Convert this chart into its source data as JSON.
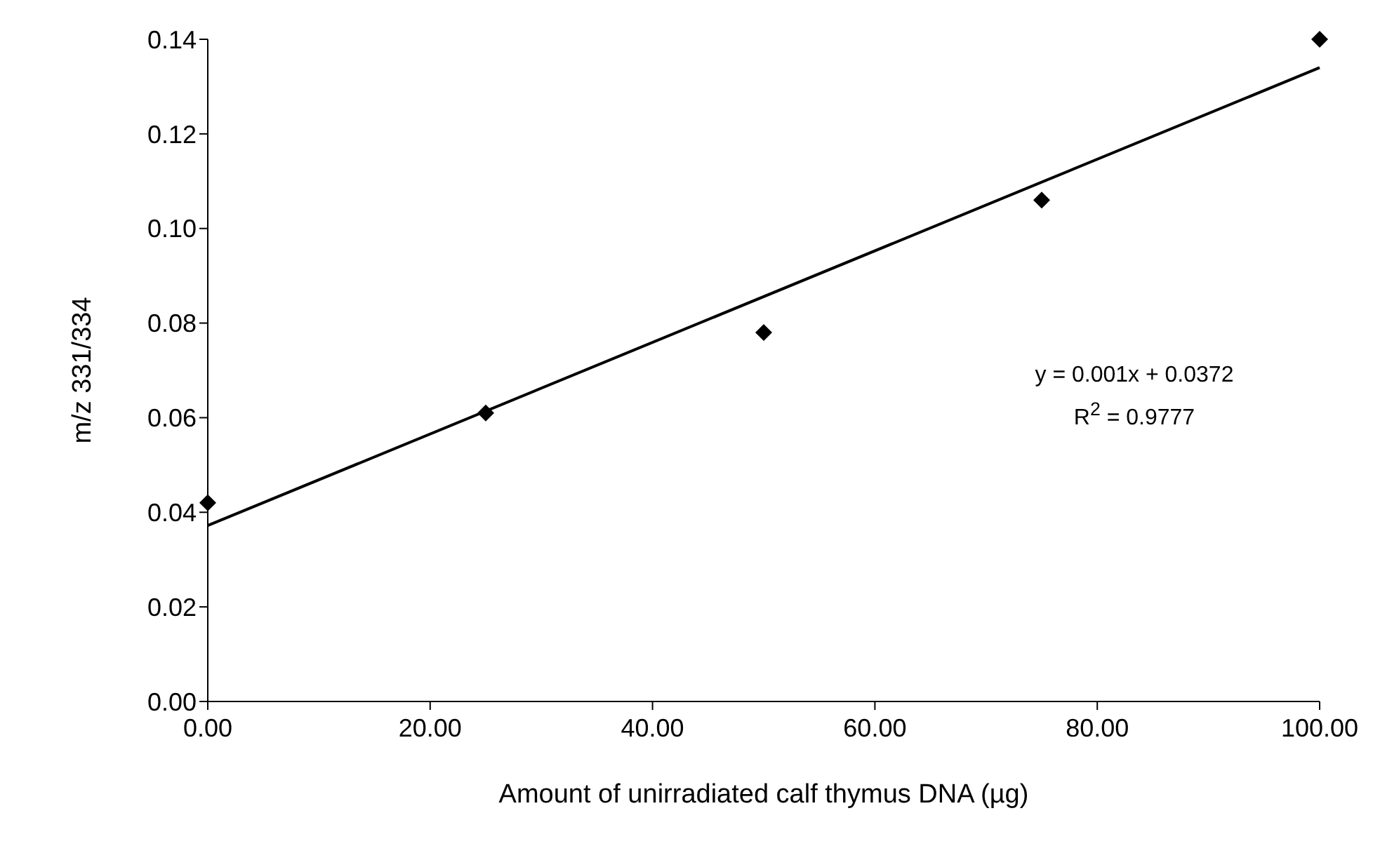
{
  "chart_data": {
    "type": "scatter",
    "xlabel": "Amount of unirradiated calf thymus DNA (µg)",
    "ylabel": "m/z 331/334",
    "x": [
      0,
      25,
      50,
      75,
      100
    ],
    "series": [
      {
        "color": "#000000",
        "marker": "diamond",
        "values": [
          0.042,
          0.061,
          0.078,
          0.106,
          0.14
        ]
      },
      {
        "type": "line",
        "color": "#000000",
        "marker": "none",
        "x": [
          0,
          100
        ],
        "values": [
          0.0372,
          0.134
        ]
      }
    ],
    "xlim": [
      0,
      100
    ],
    "xticks": [
      {
        "value": 0,
        "label": "0.00"
      },
      {
        "value": 20,
        "label": "20.00"
      },
      {
        "value": 40,
        "label": "40.00"
      },
      {
        "value": 60,
        "label": "60.00"
      },
      {
        "value": 80,
        "label": "80.00"
      },
      {
        "value": 100,
        "label": "100.00"
      }
    ],
    "ylim": [
      0,
      0.14
    ],
    "yticks": [
      {
        "value": 0,
        "label": "0.00"
      },
      {
        "value": 0.02,
        "label": "0.02"
      },
      {
        "value": 0.04,
        "label": "0.04"
      },
      {
        "value": 0.06,
        "label": "0.06"
      },
      {
        "value": 0.08,
        "label": "0.08"
      },
      {
        "value": 0.1,
        "label": "0.10"
      },
      {
        "value": 0.12,
        "label": "0.12"
      },
      {
        "value": 0.14,
        "label": "0.14"
      }
    ],
    "grid": false,
    "legend": false,
    "annotations": [
      "y = 0.001x + 0.0372",
      "R$^{2}$ = 0.9777"
    ]
  }
}
